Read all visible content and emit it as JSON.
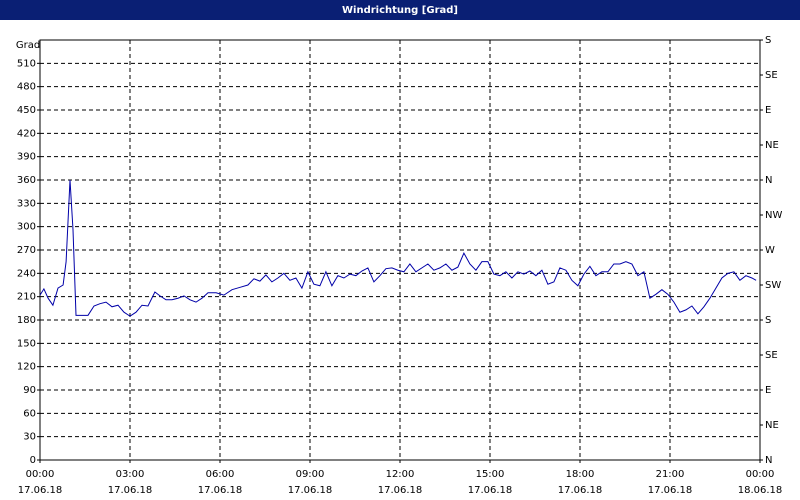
{
  "chart_data": {
    "type": "line",
    "title": "Windrichtung [Grad]",
    "ylabel": "Grad",
    "xlim": [
      0,
      24
    ],
    "ylim": [
      0,
      540
    ],
    "y2lim": [
      0,
      540
    ],
    "grid": true,
    "xticks": [
      {
        "value": 0,
        "label": "00:00",
        "date": "17.06.18"
      },
      {
        "value": 3,
        "label": "03:00",
        "date": "17.06.18"
      },
      {
        "value": 6,
        "label": "06:00",
        "date": "17.06.18"
      },
      {
        "value": 9,
        "label": "09:00",
        "date": "17.06.18"
      },
      {
        "value": 12,
        "label": "12:00",
        "date": "17.06.18"
      },
      {
        "value": 15,
        "label": "15:00",
        "date": "17.06.18"
      },
      {
        "value": 18,
        "label": "18:00",
        "date": "17.06.18"
      },
      {
        "value": 21,
        "label": "21:00",
        "date": "17.06.18"
      },
      {
        "value": 24,
        "label": "00:00",
        "date": "18.06.18"
      }
    ],
    "yticks": [
      0,
      30,
      60,
      90,
      120,
      150,
      180,
      210,
      240,
      270,
      300,
      330,
      360,
      390,
      420,
      450,
      480,
      510
    ],
    "y2ticks": [
      {
        "value": 0,
        "label": "N"
      },
      {
        "value": 45,
        "label": "NE"
      },
      {
        "value": 90,
        "label": "E"
      },
      {
        "value": 135,
        "label": "SE"
      },
      {
        "value": 180,
        "label": "S"
      },
      {
        "value": 225,
        "label": "SW"
      },
      {
        "value": 270,
        "label": "W"
      },
      {
        "value": 315,
        "label": "NW"
      },
      {
        "value": 360,
        "label": "N"
      },
      {
        "value": 405,
        "label": "NE"
      },
      {
        "value": 450,
        "label": "E"
      },
      {
        "value": 495,
        "label": "SE"
      },
      {
        "value": 540,
        "label": "S"
      }
    ],
    "color": "#0000a8",
    "x": [
      0,
      0.13,
      0.27,
      0.43,
      0.6,
      0.77,
      0.87,
      1.0,
      1.1,
      1.2,
      1.4,
      1.6,
      1.8,
      2.0,
      2.2,
      2.4,
      2.6,
      2.8,
      3.0,
      3.2,
      3.4,
      3.6,
      3.83,
      4.0,
      4.2,
      4.4,
      4.6,
      4.8,
      5.0,
      5.2,
      5.4,
      5.6,
      5.87,
      6.13,
      6.4,
      6.67,
      6.93,
      7.13,
      7.33,
      7.53,
      7.73,
      7.93,
      8.13,
      8.33,
      8.53,
      8.73,
      8.93,
      9.13,
      9.33,
      9.53,
      9.73,
      9.93,
      10.13,
      10.33,
      10.53,
      10.73,
      10.93,
      11.13,
      11.33,
      11.53,
      11.73,
      11.93,
      12.13,
      12.33,
      12.53,
      12.73,
      12.93,
      13.13,
      13.33,
      13.53,
      13.73,
      13.93,
      14.13,
      14.33,
      14.53,
      14.73,
      14.93,
      15.13,
      15.33,
      15.53,
      15.73,
      15.93,
      16.13,
      16.33,
      16.53,
      16.73,
      16.93,
      17.13,
      17.33,
      17.53,
      17.73,
      17.93,
      18.13,
      18.33,
      18.53,
      18.73,
      18.93,
      19.13,
      19.33,
      19.53,
      19.73,
      19.93,
      20.13,
      20.33,
      20.53,
      20.73,
      20.93,
      21.13,
      21.33,
      21.53,
      21.73,
      21.93,
      22.13,
      22.33,
      22.53,
      22.73,
      22.93,
      23.13,
      23.33,
      23.53,
      23.73,
      23.87
    ],
    "values": [
      212,
      220,
      208,
      199,
      221,
      225,
      255,
      360,
      296,
      186,
      186,
      186,
      198,
      201,
      203,
      197,
      199,
      190,
      185,
      190,
      199,
      198,
      216,
      211,
      206,
      206,
      208,
      211,
      206,
      203,
      208,
      215,
      215,
      212,
      219,
      222,
      225,
      233,
      230,
      238,
      229,
      234,
      240,
      231,
      234,
      221,
      242,
      226,
      224,
      242,
      224,
      237,
      234,
      239,
      237,
      243,
      247,
      229,
      237,
      246,
      247,
      244,
      242,
      252,
      242,
      247,
      252,
      244,
      247,
      252,
      244,
      248,
      266,
      252,
      244,
      255,
      255,
      239,
      237,
      242,
      234,
      242,
      239,
      243,
      237,
      244,
      226,
      229,
      247,
      244,
      231,
      224,
      239,
      249,
      237,
      242,
      242,
      252,
      252,
      255,
      252,
      237,
      242,
      208,
      213,
      219,
      213,
      203,
      190,
      193,
      198,
      188,
      197,
      208,
      221,
      234,
      240,
      242,
      231,
      237,
      234,
      231
    ]
  }
}
